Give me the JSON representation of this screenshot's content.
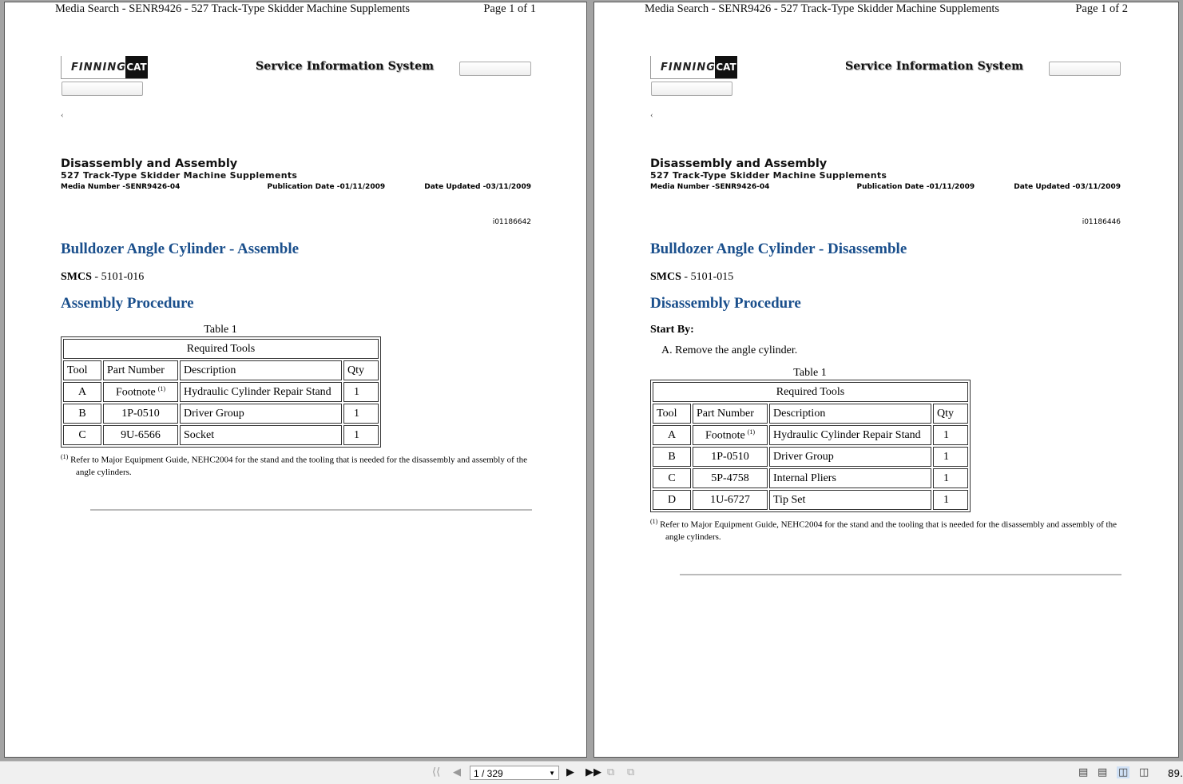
{
  "pages": [
    {
      "header_title": "Media Search - SENR9426 - 527 Track-Type Skidder Machine Supplements",
      "page_label": "Page 1 of 1",
      "logo_text": "FINNING",
      "logo_cat": "CAT",
      "sis_title": "Service Information System",
      "back_icon": "‹",
      "doc_type": "Disassembly and Assembly",
      "doc_subtitle": "527 Track-Type Skidder Machine Supplements",
      "media_number": "Media Number -SENR9426-04",
      "publication_date": "Publication Date -01/11/2009",
      "date_updated": "Date Updated -03/11/2009",
      "doc_id": "i01186642",
      "title": "Bulldozer Angle Cylinder - Assemble",
      "smcs_label": "SMCS",
      "smcs_value": " - 5101-016",
      "procedure_heading": "Assembly Procedure",
      "start_by": null,
      "steps": [],
      "table_caption": "Table 1",
      "table_title": "Required Tools",
      "columns": [
        "Tool",
        "Part Number",
        "Description",
        "Qty"
      ],
      "rows": [
        [
          "A",
          "Footnote",
          "Hydraulic Cylinder Repair Stand",
          "1"
        ],
        [
          "B",
          "1P-0510",
          "Driver Group",
          "1"
        ],
        [
          "C",
          "9U-6566",
          "Socket",
          "1"
        ]
      ],
      "footnote_marker": "(1)",
      "footnote": "Refer to Major Equipment Guide, NEHC2004 for the stand and the tooling that is needed for the disassembly and assembly of the angle cylinders."
    },
    {
      "header_title": "Media Search - SENR9426 - 527 Track-Type Skidder Machine Supplements",
      "page_label": "Page 1 of 2",
      "logo_text": "FINNING",
      "logo_cat": "CAT",
      "sis_title": "Service Information System",
      "back_icon": "‹",
      "doc_type": "Disassembly and Assembly",
      "doc_subtitle": "527 Track-Type Skidder Machine Supplements",
      "media_number": "Media Number -SENR9426-04",
      "publication_date": "Publication Date -01/11/2009",
      "date_updated": "Date Updated -03/11/2009",
      "doc_id": "i01186446",
      "title": "Bulldozer Angle Cylinder - Disassemble",
      "smcs_label": "SMCS",
      "smcs_value": " - 5101-015",
      "procedure_heading": "Disassembly Procedure",
      "start_by": "Start By:",
      "steps": [
        "A.  Remove the angle cylinder."
      ],
      "table_caption": "Table 1",
      "table_title": "Required Tools",
      "columns": [
        "Tool",
        "Part Number",
        "Description",
        "Qty"
      ],
      "rows": [
        [
          "A",
          "Footnote",
          "Hydraulic Cylinder Repair Stand",
          "1"
        ],
        [
          "B",
          "1P-0510",
          "Driver Group",
          "1"
        ],
        [
          "C",
          "5P-4758",
          "Internal Pliers",
          "1"
        ],
        [
          "D",
          "1U-6727",
          "Tip Set",
          "1"
        ]
      ],
      "footnote_marker": "(1)",
      "footnote": "Refer to Major Equipment Guide, NEHC2004 for the stand and the tooling that is needed for the disassembly and assembly of the angle cylinders."
    }
  ],
  "toolbar": {
    "first_icon": "first-page-icon",
    "prev_icon": "prev-page-icon",
    "page_input": "1 / 329",
    "next_icon": "next-page-icon",
    "last_icon": "last-page-icon",
    "zoom": "89.",
    "active_view": "two-page"
  },
  "colors": {
    "heading": "#1a4f8c"
  }
}
